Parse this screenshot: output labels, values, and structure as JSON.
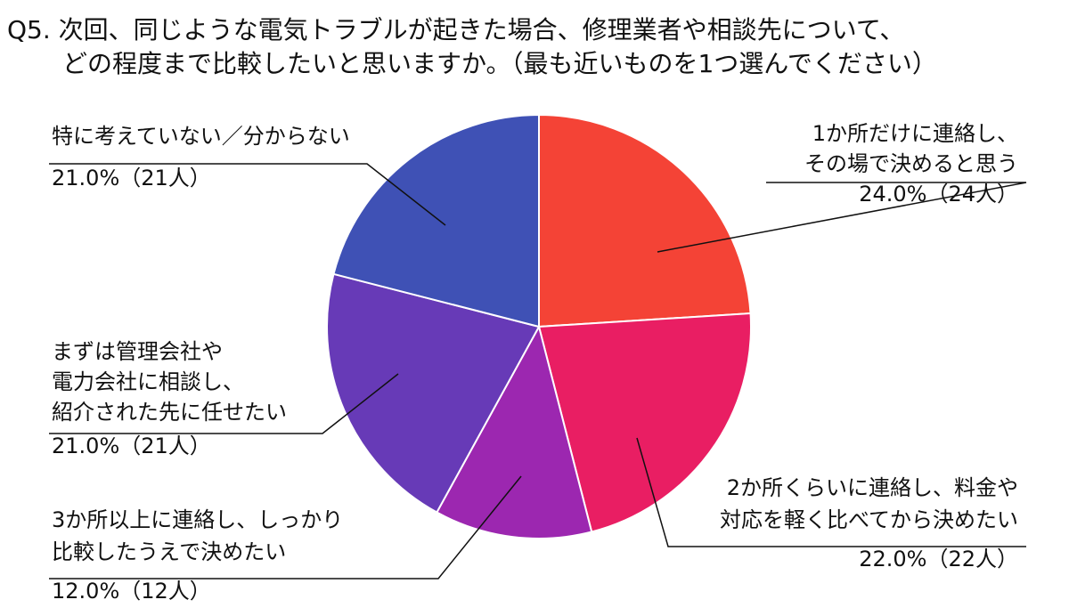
{
  "chart_data": {
    "type": "pie",
    "title": [
      "Q5. 次回、同じような電気トラブルが起きた場合、修理業者や相談先について、",
      "どの程度まで比較したいと思いますか。（最も近いものを1つ選んでください）"
    ],
    "start": "top",
    "direction": "clockwise",
    "slices": [
      {
        "label": [
          "1か所だけに連絡し、",
          "その場で決めると思う"
        ],
        "value": 24.0,
        "value_label": "24.0%（24人）",
        "color": "#f44336"
      },
      {
        "label": [
          "2か所くらいに連絡し、料金や",
          "対応を軽く比べてから決めたい"
        ],
        "value": 22.0,
        "value_label": "22.0%（22人）",
        "color": "#e91e63"
      },
      {
        "label": [
          "3か所以上に連絡し、しっかり",
          "比較したうえで決めたい"
        ],
        "value": 12.0,
        "value_label": "12.0%（12人）",
        "color": "#9c27b0"
      },
      {
        "label": [
          "まずは管理会社や",
          "電力会社に相談し、",
          "紹介された先に任せたい"
        ],
        "value": 21.0,
        "value_label": "21.0%（21人）",
        "color": "#673ab7"
      },
      {
        "label": [
          "特に考えていない／分からない"
        ],
        "value": 21.0,
        "value_label": "21.0%（21人）",
        "color": "#3f51b5"
      }
    ]
  }
}
